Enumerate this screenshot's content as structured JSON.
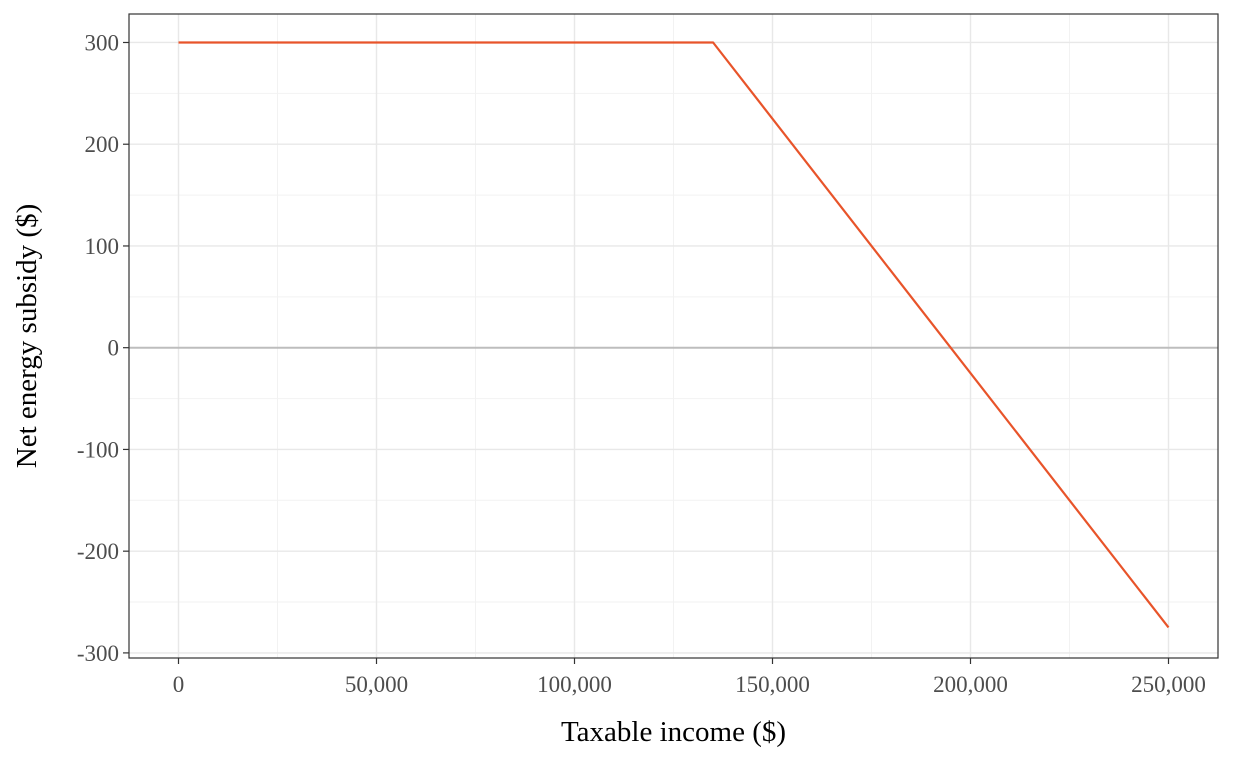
{
  "chart_data": {
    "type": "line",
    "title": "",
    "xlabel": "Taxable income ($)",
    "ylabel": "Net energy subsidy ($)",
    "xlim": [
      -12500,
      262500
    ],
    "ylim": [
      -305,
      328
    ],
    "x_ticks": [
      0,
      50000,
      100000,
      150000,
      200000,
      250000
    ],
    "x_tick_labels": [
      "0",
      "50,000",
      "100,000",
      "150,000",
      "200,000",
      "250,000"
    ],
    "y_ticks": [
      300,
      200,
      100,
      0,
      -100,
      -200,
      -300
    ],
    "y_tick_labels": [
      "300",
      "200",
      "100",
      "0",
      "-100",
      "-200",
      "-300"
    ],
    "grid": true,
    "zero_line": true,
    "line_color": "#E8542A",
    "series": [
      {
        "x": [
          0,
          135000,
          250000
        ],
        "y": [
          300,
          300,
          -275
        ]
      }
    ]
  }
}
